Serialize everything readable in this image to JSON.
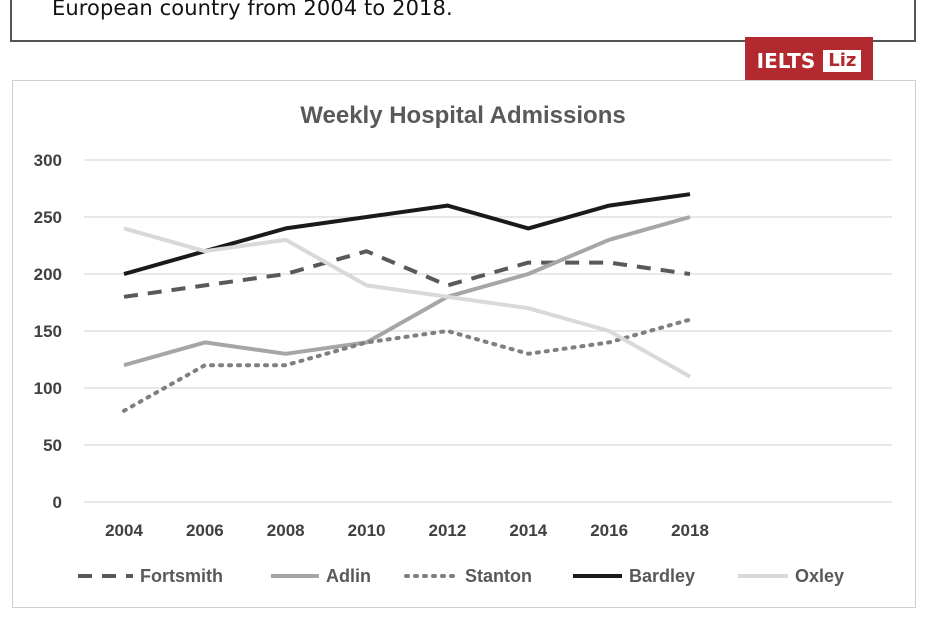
{
  "caption": {
    "text": "European country from 2004 to 2018."
  },
  "brand": {
    "label": "IELTS",
    "badge": "Liz"
  },
  "chart_data": {
    "type": "line",
    "title": "Weekly Hospital Admissions",
    "xlabel": "",
    "ylabel": "",
    "categories": [
      "2004",
      "2006",
      "2008",
      "2010",
      "2012",
      "2014",
      "2016",
      "2018"
    ],
    "yticks": [
      0,
      50,
      100,
      150,
      200,
      250,
      300
    ],
    "ylim": [
      0,
      300
    ],
    "grid": true,
    "legend_position": "bottom",
    "series": [
      {
        "name": "Fortsmith",
        "values": [
          180,
          190,
          200,
          220,
          190,
          210,
          210,
          200
        ],
        "color": "#595959",
        "style": "dashed"
      },
      {
        "name": "Adlin",
        "values": [
          120,
          140,
          130,
          140,
          180,
          200,
          230,
          250
        ],
        "color": "#a6a6a6",
        "style": "solid"
      },
      {
        "name": "Stanton",
        "values": [
          80,
          120,
          120,
          140,
          150,
          130,
          140,
          160
        ],
        "color": "#7f7f7f",
        "style": "dotted"
      },
      {
        "name": "Bardley",
        "values": [
          200,
          220,
          240,
          250,
          260,
          240,
          260,
          270
        ],
        "color": "#1a1a1a",
        "style": "solid"
      },
      {
        "name": "Oxley",
        "values": [
          240,
          220,
          230,
          190,
          180,
          170,
          150,
          110
        ],
        "color": "#d9d9d9",
        "style": "solid"
      }
    ]
  }
}
